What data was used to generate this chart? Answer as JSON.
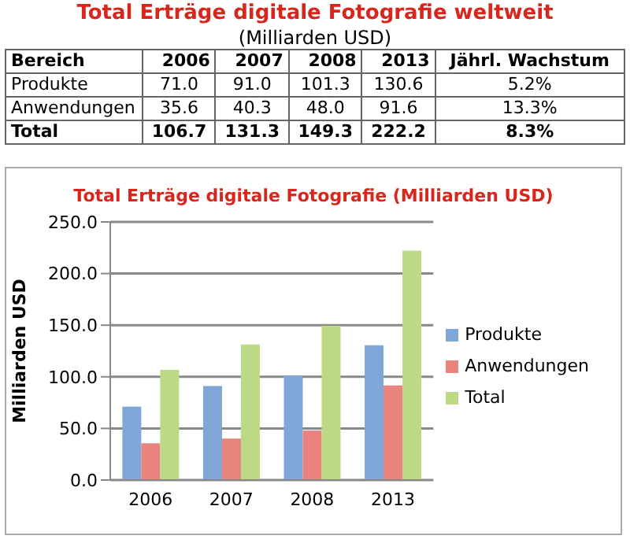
{
  "chart_data": {
    "type": "bar",
    "title": "Total Erträge digitale Fotografie weltweit",
    "subtitle": "(Milliarden USD)",
    "ylabel": "Milliarden USD",
    "annotations": [
      "Total Erträge digitale Fotografie (Milliarden USD)",
      "Bereich",
      "Jährl. Wachstum",
      "5.2%",
      "13.3%",
      "8.3%"
    ],
    "categories": [
      "2006",
      "2007",
      "2008",
      "2013"
    ],
    "series": [
      {
        "name": "Produkte",
        "color": "#7fa6d6",
        "values": [
          71.0,
          91.0,
          101.3,
          130.6
        ],
        "value_labels": [
          "71.0",
          "91.0",
          "101.3",
          "130.6"
        ]
      },
      {
        "name": "Anwendungen",
        "color": "#e8837d",
        "values": [
          35.6,
          40.3,
          48.0,
          91.6
        ],
        "value_labels": [
          "35.6",
          "40.3",
          "48.0",
          "91.6"
        ]
      },
      {
        "name": "Total",
        "color": "#bcd985",
        "values": [
          106.7,
          131.3,
          149.3,
          222.2
        ],
        "value_labels": [
          "106.7",
          "131.3",
          "149.3",
          "222.2"
        ]
      }
    ],
    "ylim": [
      0,
      250
    ],
    "yticks": [
      {
        "value": 0,
        "label": "0.0"
      },
      {
        "value": 50,
        "label": "50.0"
      },
      {
        "value": 100,
        "label": "100.0"
      },
      {
        "value": 150,
        "label": "150.0"
      },
      {
        "value": 200,
        "label": "200.0"
      },
      {
        "value": 250,
        "label": "250.0"
      }
    ],
    "grid": "y",
    "legend": "right"
  }
}
